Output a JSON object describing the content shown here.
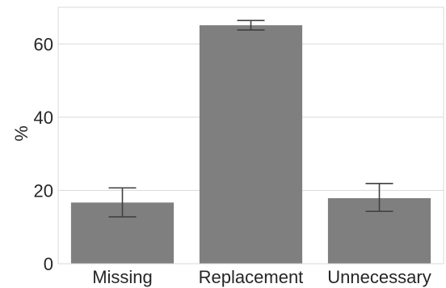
{
  "chart_data": {
    "type": "bar",
    "categories": [
      "Missing",
      "Replacement",
      "Unnecessary"
    ],
    "values": [
      16.7,
      65.1,
      17.9
    ],
    "error_low": [
      12.8,
      63.8,
      14.3
    ],
    "error_high": [
      20.7,
      66.4,
      21.9
    ],
    "title": "",
    "xlabel": "",
    "ylabel": "%",
    "ylim": [
      0,
      70
    ],
    "yticks": [
      0,
      20,
      40,
      60
    ],
    "grid": true,
    "bar_color": "#7f7f7f",
    "grid_color": "#d9d9d9",
    "errorbar_color": "#404040"
  }
}
